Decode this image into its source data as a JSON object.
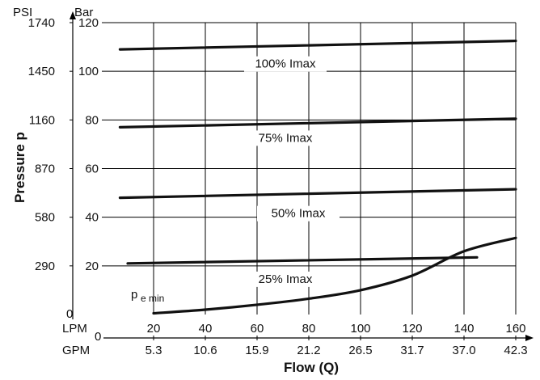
{
  "chart_data": {
    "type": "line",
    "xlabel": "Flow (Q)",
    "ylabel": "Pressure p",
    "x_unit_primary": "LPM",
    "x_unit_secondary": "GPM",
    "y_unit_primary": "Bar",
    "y_unit_secondary": "PSI",
    "xlim": [
      0,
      160
    ],
    "ylim": [
      0,
      120
    ],
    "x_ticks": [
      20,
      40,
      60,
      80,
      100,
      120,
      140,
      160
    ],
    "x_tick_labels": [
      "20",
      "40",
      "60",
      "80",
      "100",
      "120",
      "140",
      "160"
    ],
    "x_tick_labels_secondary": [
      "5.3",
      "10.6",
      "15.9",
      "21.2",
      "26.5",
      "31.7",
      "37.0",
      "42.3"
    ],
    "x_zero_labels": [
      "0",
      "0"
    ],
    "y_ticks": [
      20,
      40,
      60,
      80,
      100,
      120
    ],
    "y_tick_labels": [
      "20",
      "40",
      "60",
      "80",
      "100",
      "120"
    ],
    "y_tick_labels_secondary": [
      "290",
      "580",
      "870",
      "1160",
      "1450",
      "1740"
    ],
    "y_zero_label_secondary": "0",
    "grid": true,
    "series": [
      {
        "name": "100% Imax",
        "x": [
          7,
          160
        ],
        "y": [
          109,
          112.5
        ]
      },
      {
        "name": "75% Imax",
        "x": [
          7,
          160
        ],
        "y": [
          77,
          80.5
        ]
      },
      {
        "name": "50% Imax",
        "x": [
          7,
          160
        ],
        "y": [
          48,
          51.5
        ]
      },
      {
        "name": "25% Imax",
        "x": [
          10,
          145
        ],
        "y": [
          21,
          23.5
        ]
      },
      {
        "name": "p e min",
        "x": [
          20,
          40,
          60,
          80,
          100,
          120,
          140,
          160
        ],
        "y": [
          0.5,
          2,
          4,
          6.5,
          10,
          16,
          26,
          31.5
        ]
      }
    ]
  }
}
